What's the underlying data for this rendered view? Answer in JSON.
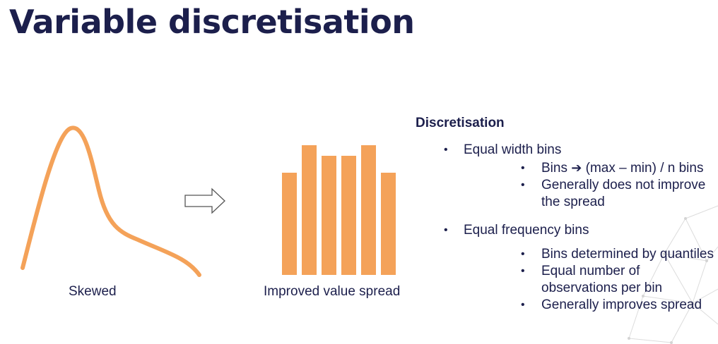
{
  "slide": {
    "title": "Variable discretisation"
  },
  "figure": {
    "left_caption": "Skewed",
    "right_caption": "Improved value spread",
    "histogram_relative_heights": [
      0.79,
      1.0,
      0.92,
      0.92,
      1.0,
      0.79
    ],
    "colors": {
      "accent": "#f4a259",
      "text": "#1c1f4c",
      "arrow_outline": "#555555"
    }
  },
  "discretisation": {
    "heading": "Discretisation",
    "equal_width": {
      "label": "Equal width bins",
      "sub1_prefix": "Bins",
      "sub1_arrow": "➔",
      "sub1_suffix": "(max – min) / n bins",
      "sub2": "Generally does not improve the spread"
    },
    "equal_frequency": {
      "label": "Equal frequency bins",
      "sub1": "Bins determined by quantiles",
      "sub2": "Equal number of observations per bin",
      "sub3": "Generally improves spread"
    }
  }
}
